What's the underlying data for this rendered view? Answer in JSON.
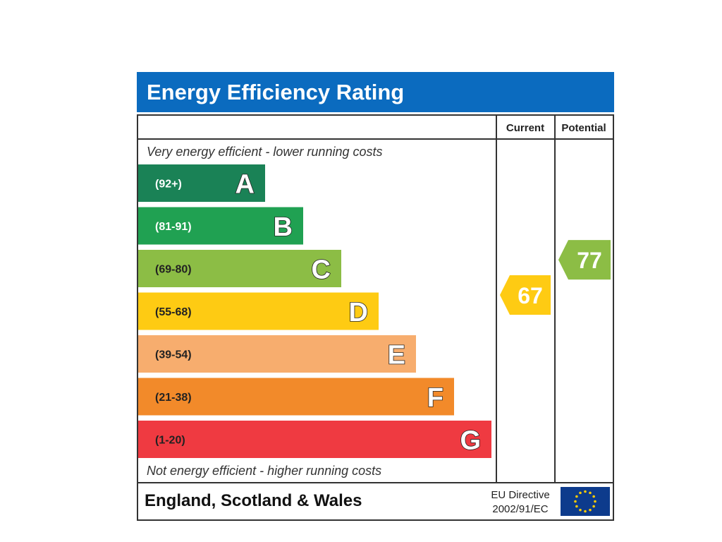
{
  "chart_data": {
    "type": "bar",
    "title": "Energy Efficiency Rating",
    "column_headers": {
      "current": "Current",
      "potential": "Potential"
    },
    "top_note": "Very energy efficient - lower running costs",
    "bottom_note": "Not energy efficient - higher running costs",
    "bands": [
      {
        "letter": "A",
        "range": "(92+)",
        "color": "#1a8256",
        "range_color": "#ffffff"
      },
      {
        "letter": "B",
        "range": "(81-91)",
        "color": "#20a152",
        "range_color": "#ffffff"
      },
      {
        "letter": "C",
        "range": "(69-80)",
        "color": "#8cbd45",
        "range_color": "#222222"
      },
      {
        "letter": "D",
        "range": "(55-68)",
        "color": "#fecb13",
        "range_color": "#222222"
      },
      {
        "letter": "E",
        "range": "(39-54)",
        "color": "#f7ad6e",
        "range_color": "#222222"
      },
      {
        "letter": "F",
        "range": "(21-38)",
        "color": "#f28a2a",
        "range_color": "#222222"
      },
      {
        "letter": "G",
        "range": "(1-20)",
        "color": "#ef3a41",
        "range_color": "#222222"
      }
    ],
    "current": {
      "value": 67,
      "band": "D",
      "color": "#fecb13"
    },
    "potential": {
      "value": 77,
      "band": "C",
      "color": "#8cbd45"
    },
    "footer": {
      "region": "England, Scotland & Wales",
      "directive_line1": "EU Directive",
      "directive_line2": "2002/91/EC"
    },
    "colors": {
      "title_bar": "#0b6bbf",
      "eu_flag": "#0d3b8c",
      "eu_stars": "#ffcc00"
    }
  }
}
